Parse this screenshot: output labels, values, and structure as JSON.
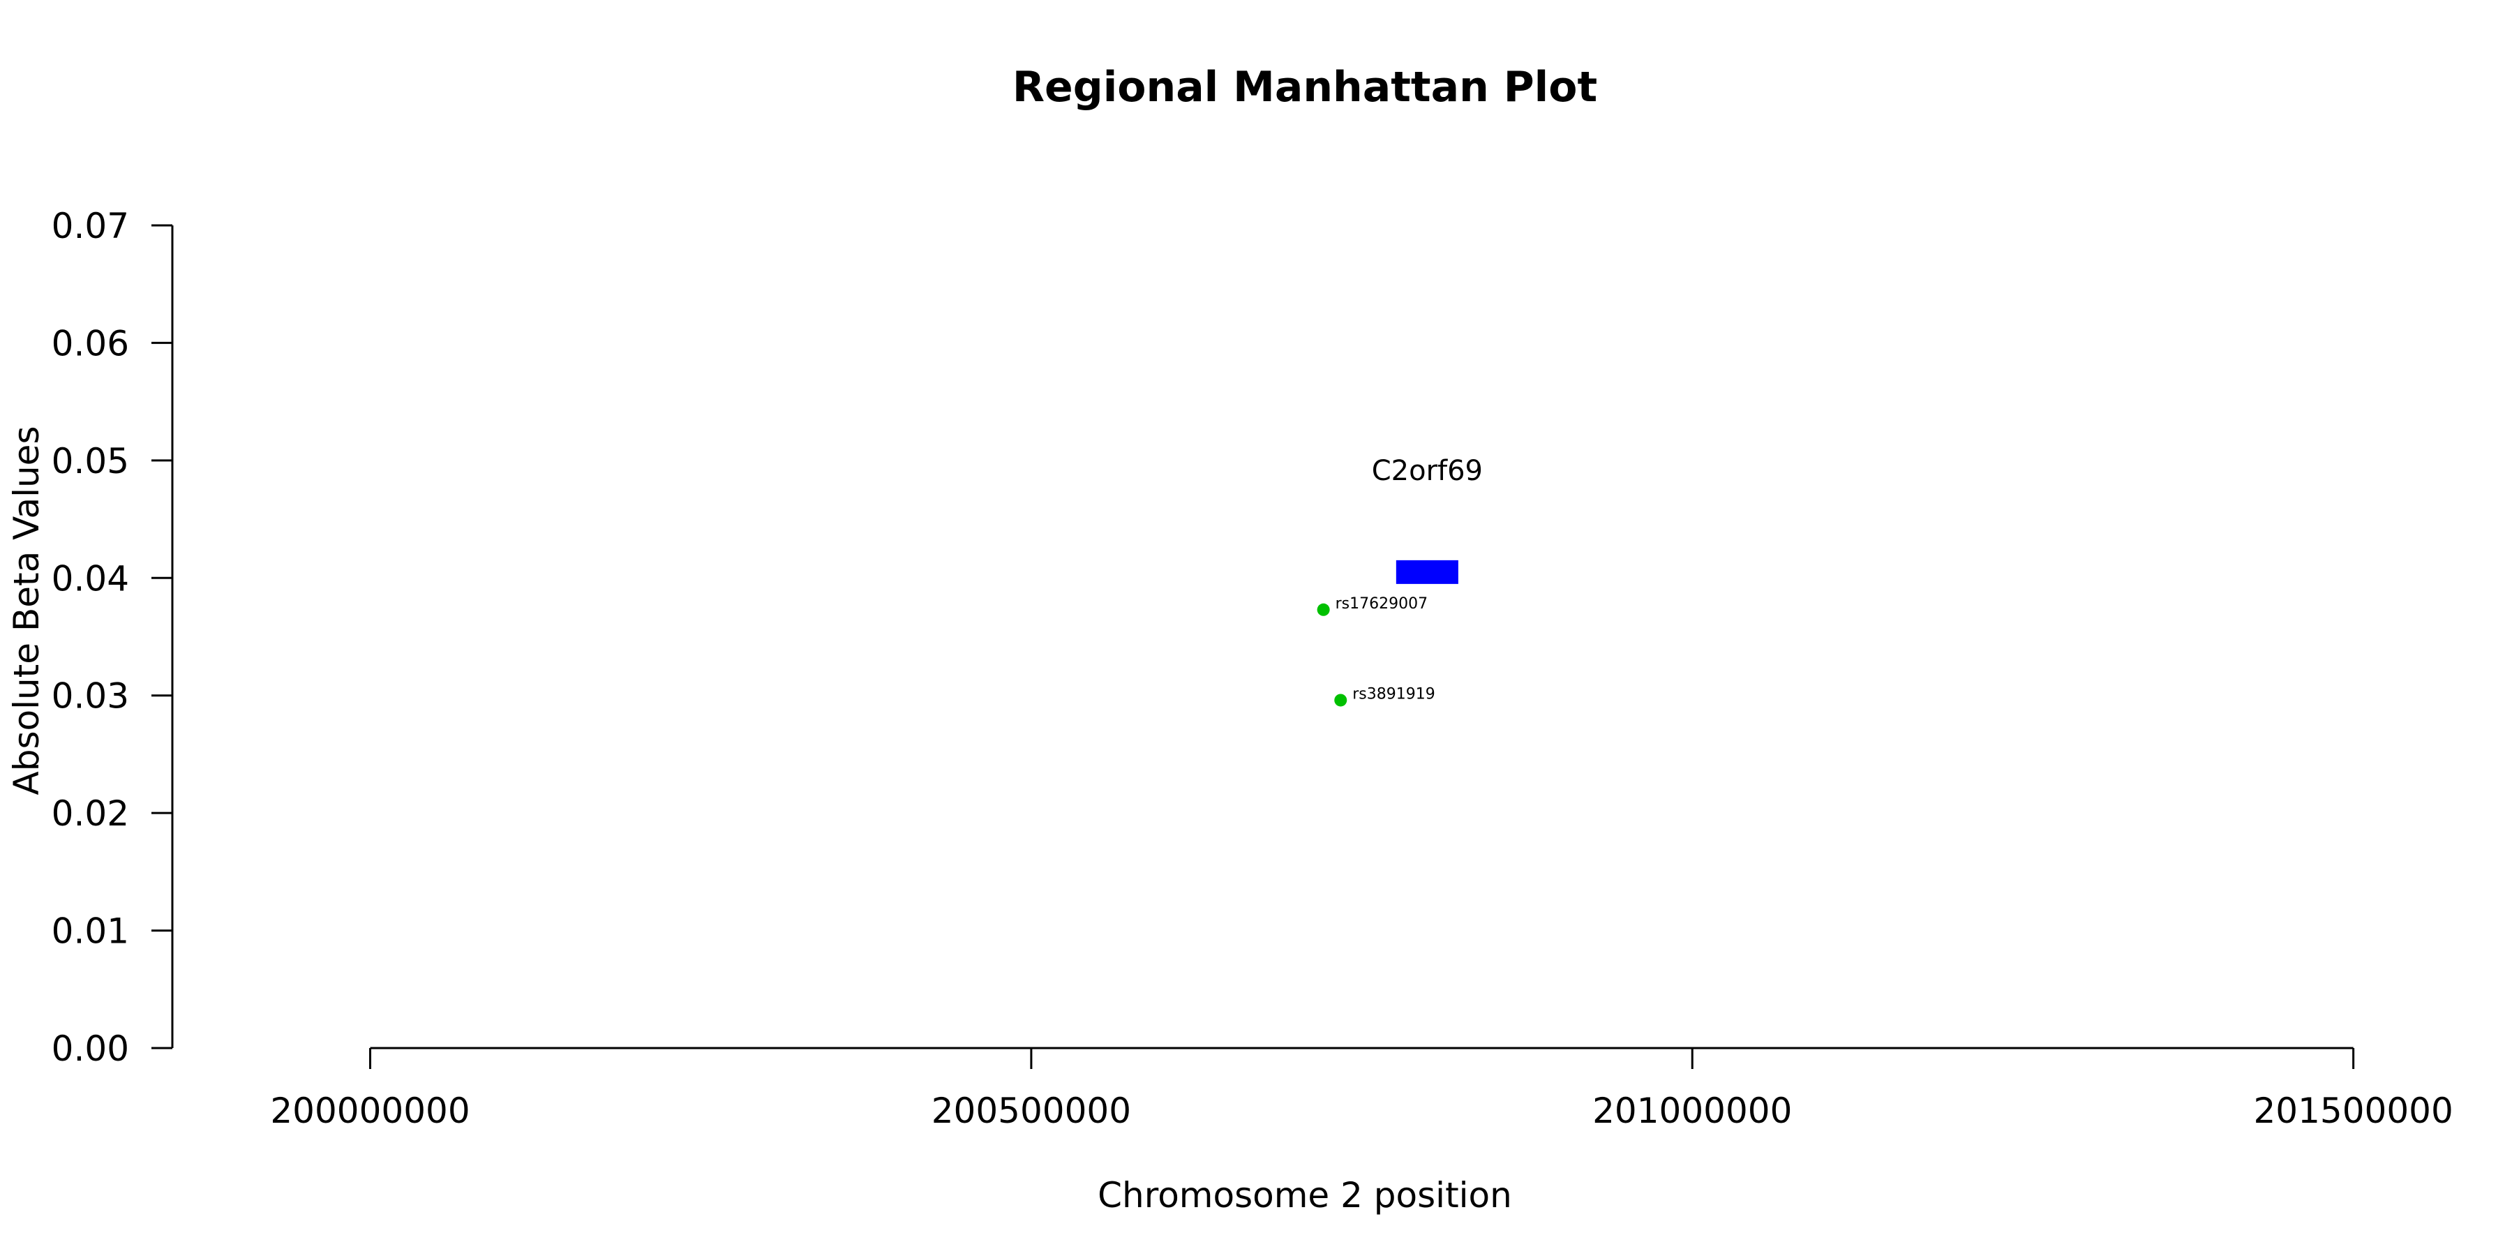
{
  "chart_data": {
    "type": "scatter",
    "title": "Regional Manhattan Plot",
    "xlabel": "Chromosome 2 position",
    "ylabel": "Absolute Beta Values",
    "xlim": [
      199720000,
      201620000
    ],
    "ylim": [
      0.0,
      0.07
    ],
    "x_ticks": [
      200000000,
      200500000,
      201000000,
      201500000
    ],
    "x_tick_labels": [
      "200000000",
      "200500000",
      "201000000",
      "201500000"
    ],
    "y_ticks": [
      0.0,
      0.01,
      0.02,
      0.03,
      0.04,
      0.05,
      0.06,
      0.07
    ],
    "y_tick_labels": [
      "0.00",
      "0.01",
      "0.02",
      "0.03",
      "0.04",
      "0.05",
      "0.06",
      "0.07"
    ],
    "grid": false,
    "series": [
      {
        "color": "#00c000",
        "points": [
          {
            "label": "rs17629007",
            "x": 200721000,
            "y": 0.0373
          },
          {
            "label": "rs3891919",
            "x": 200734000,
            "y": 0.0296
          }
        ]
      }
    ],
    "genes": [
      {
        "name": "C2orf69",
        "start": 200776000,
        "end": 200823000,
        "y": 0.0405,
        "color": "#0000ff"
      }
    ]
  }
}
